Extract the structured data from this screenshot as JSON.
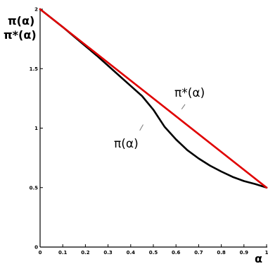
{
  "chart_data": {
    "type": "line",
    "xlabel": "α",
    "ylabel_lines": [
      "π(α)",
      "π*(α)"
    ],
    "xlim": [
      0,
      1
    ],
    "ylim": [
      0,
      2
    ],
    "xticks": [
      "0",
      "0.1",
      "0.2",
      "0.3",
      "0.4",
      "0.5",
      "0.6",
      "0.7",
      "0.8",
      "0.9",
      "1"
    ],
    "yticks": [
      "0",
      "0.5",
      "1",
      "1.5",
      "2"
    ],
    "grid": false,
    "legend": "none",
    "series": [
      {
        "name": "π(α)",
        "color": "#000000",
        "x": [
          0,
          0.05,
          0.1,
          0.15,
          0.2,
          0.25,
          0.3,
          0.35,
          0.4,
          0.45,
          0.5,
          0.55,
          0.6,
          0.65,
          0.7,
          0.75,
          0.8,
          0.85,
          0.9,
          0.95,
          1.0
        ],
        "y": [
          2.0,
          1.925,
          1.85,
          1.77,
          1.69,
          1.61,
          1.525,
          1.44,
          1.355,
          1.27,
          1.155,
          1.01,
          0.905,
          0.815,
          0.745,
          0.685,
          0.635,
          0.59,
          0.555,
          0.53,
          0.5
        ]
      },
      {
        "name": "π*(α)",
        "color": "#e00000",
        "x": [
          0,
          1
        ],
        "y": [
          2.0,
          0.5
        ]
      }
    ],
    "annotations": [
      {
        "text": "π*(α)",
        "leader_x": [
          0.625,
          0.64
        ],
        "leader_y": [
          1.16,
          1.2
        ]
      },
      {
        "text": "π(α)",
        "leader_x": [
          0.44,
          0.455
        ],
        "leader_y": [
          0.98,
          1.03
        ]
      }
    ]
  }
}
